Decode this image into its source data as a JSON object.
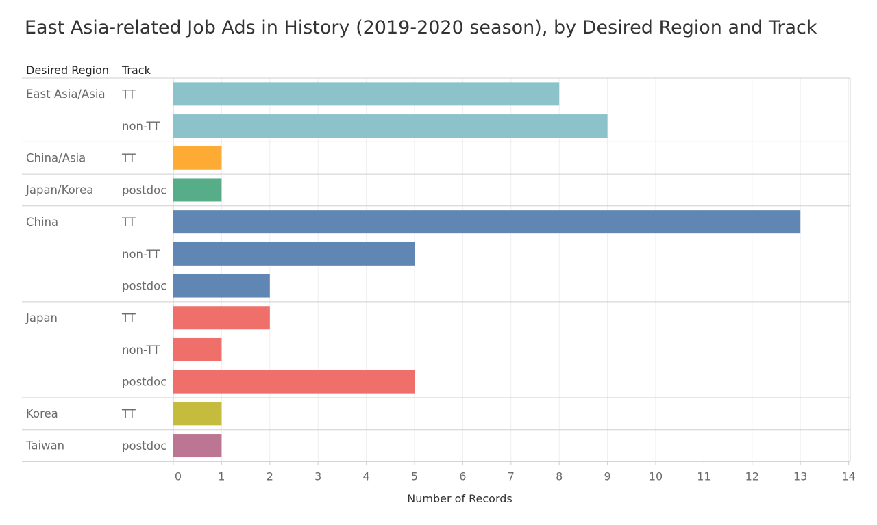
{
  "title": "East Asia-related Job Ads in History (2019-2020 season), by Desired Region and Track",
  "headers": {
    "region": "Desired Region",
    "track": "Track"
  },
  "chart_data": {
    "type": "bar",
    "orientation": "horizontal",
    "title": "East Asia-related Job Ads in History (2019-2020 season), by Desired Region and Track",
    "xlabel": "Number of Records",
    "xlim": [
      0,
      14
    ],
    "xticks": [
      0,
      1,
      2,
      3,
      4,
      5,
      6,
      7,
      8,
      9,
      10,
      11,
      12,
      13,
      14
    ],
    "grid": true,
    "groups": [
      {
        "region": "East Asia/Asia",
        "color": "#8cc2ca",
        "rows": [
          {
            "track": "TT",
            "value": 8
          },
          {
            "track": "non-TT",
            "value": 9
          }
        ]
      },
      {
        "region": "China/Asia",
        "color": "#fdab34",
        "rows": [
          {
            "track": "TT",
            "value": 1
          }
        ]
      },
      {
        "region": "Japan/Korea",
        "color": "#57ad88",
        "rows": [
          {
            "track": "postdoc",
            "value": 1
          }
        ]
      },
      {
        "region": "China",
        "color": "#6087b3",
        "rows": [
          {
            "track": "TT",
            "value": 13
          },
          {
            "track": "non-TT",
            "value": 5
          },
          {
            "track": "postdoc",
            "value": 2
          }
        ]
      },
      {
        "region": "Japan",
        "color": "#ef6f6a",
        "rows": [
          {
            "track": "TT",
            "value": 2
          },
          {
            "track": "non-TT",
            "value": 1
          },
          {
            "track": "postdoc",
            "value": 5
          }
        ]
      },
      {
        "region": "Korea",
        "color": "#c5bc3e",
        "rows": [
          {
            "track": "TT",
            "value": 1
          }
        ]
      },
      {
        "region": "Taiwan",
        "color": "#bc7592",
        "rows": [
          {
            "track": "postdoc",
            "value": 1
          }
        ]
      }
    ]
  }
}
